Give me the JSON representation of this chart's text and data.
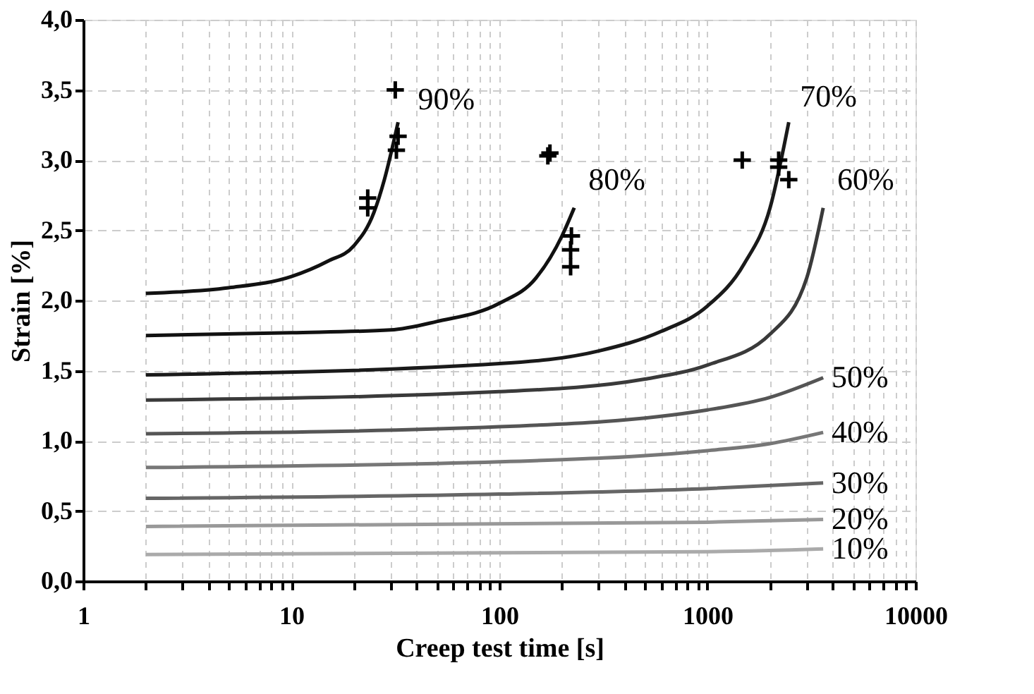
{
  "chart_data": {
    "type": "line",
    "xlabel": "Creep test time [s]",
    "ylabel": "Strain [%]",
    "log": "x",
    "grid": true,
    "line_style": "solid",
    "xlim": [
      1,
      10000
    ],
    "ylim": [
      0,
      4
    ],
    "xticks": [
      1,
      {
        "value": 2,
        "label": null
      },
      {
        "value": 3,
        "label": null
      },
      {
        "value": 4,
        "label": null
      },
      {
        "value": 5,
        "label": null
      },
      {
        "value": 6,
        "label": null
      },
      {
        "value": 7,
        "label": null
      },
      {
        "value": 8,
        "label": null
      },
      {
        "value": 9,
        "label": null
      },
      10,
      {
        "value": 20,
        "label": null
      },
      {
        "value": 30,
        "label": null
      },
      {
        "value": 40,
        "label": null
      },
      {
        "value": 50,
        "label": null
      },
      {
        "value": 60,
        "label": null
      },
      {
        "value": 70,
        "label": null
      },
      {
        "value": 80,
        "label": null
      },
      {
        "value": 90,
        "label": null
      },
      100,
      {
        "value": 200,
        "label": null
      },
      {
        "value": 300,
        "label": null
      },
      {
        "value": 400,
        "label": null
      },
      {
        "value": 500,
        "label": null
      },
      {
        "value": 600,
        "label": null
      },
      {
        "value": 700,
        "label": null
      },
      {
        "value": 800,
        "label": null
      },
      {
        "value": 900,
        "label": null
      },
      1000,
      {
        "value": 2000,
        "label": null
      },
      {
        "value": 3000,
        "label": null
      },
      {
        "value": 4000,
        "label": null
      },
      {
        "value": 5000,
        "label": null
      },
      {
        "value": 6000,
        "label": null
      },
      {
        "value": 7000,
        "label": null
      },
      {
        "value": 8000,
        "label": null
      },
      {
        "value": 9000,
        "label": null
      },
      10000
    ],
    "yticks": [
      {
        "value": 0,
        "label": "0,0"
      },
      {
        "value": 0.5,
        "label": "0,5"
      },
      {
        "value": 1,
        "label": "1,0"
      },
      {
        "value": 1.5,
        "label": "1,5"
      },
      {
        "value": 2,
        "label": "2,0"
      },
      {
        "value": 2.5,
        "label": "2,5"
      },
      {
        "value": 3,
        "label": "3,0"
      },
      {
        "value": 3.5,
        "label": "3,5"
      },
      {
        "value": 4,
        "label": "4,0"
      }
    ],
    "series": [
      {
        "name": "90%",
        "color": "#111111",
        "x": [
          2,
          5,
          10,
          15,
          20,
          25,
          28,
          32.6
        ],
        "values": [
          2.05,
          2.09,
          2.17,
          2.28,
          2.39,
          2.63,
          2.86,
          3.27
        ]
      },
      {
        "name": "80%",
        "color": "#111111",
        "x": [
          2,
          10,
          30,
          50,
          100,
          150,
          200,
          229
        ],
        "values": [
          1.75,
          1.77,
          1.79,
          1.85,
          1.98,
          2.16,
          2.46,
          2.66
        ]
      },
      {
        "name": "70%",
        "color": "#1a1a1a",
        "x": [
          2,
          100,
          300,
          600,
          1000,
          1500,
          2000,
          2460
        ],
        "values": [
          1.47,
          1.55,
          1.64,
          1.78,
          1.96,
          2.26,
          2.66,
          3.27
        ]
      },
      {
        "name": "60%",
        "color": "#3a3a3a",
        "x": [
          2,
          100,
          500,
          1000,
          2000,
          3000,
          3600
        ],
        "values": [
          1.29,
          1.35,
          1.44,
          1.54,
          1.76,
          2.16,
          2.66
        ]
      },
      {
        "name": "50%",
        "color": "#555555",
        "x": [
          2,
          100,
          1000,
          2000,
          3600
        ],
        "values": [
          1.05,
          1.1,
          1.22,
          1.31,
          1.45
        ]
      },
      {
        "name": "40%",
        "color": "#777777",
        "x": [
          2,
          100,
          1000,
          2000,
          3600
        ],
        "values": [
          0.81,
          0.85,
          0.93,
          0.98,
          1.06
        ]
      },
      {
        "name": "30%",
        "color": "#666666",
        "x": [
          2,
          100,
          1000,
          3600
        ],
        "values": [
          0.59,
          0.62,
          0.66,
          0.7
        ]
      },
      {
        "name": "20%",
        "color": "#999999",
        "x": [
          2,
          1000,
          3600
        ],
        "values": [
          0.39,
          0.42,
          0.44
        ]
      },
      {
        "name": "10%",
        "color": "#aaaaaa",
        "x": [
          2,
          1000,
          3600
        ],
        "values": [
          0.19,
          0.21,
          0.23
        ]
      },
      {
        "type": "scatter",
        "marker": "cross",
        "color": "#000000",
        "x": [
          31.6,
          32.6,
          32,
          23.3,
          23.3,
          171,
          175,
          222,
          220,
          220,
          1470,
          2200,
          2200,
          2460
        ],
        "values": [
          3.5,
          3.17,
          3.07,
          2.73,
          2.66,
          3.03,
          3.05,
          2.46,
          2.36,
          2.24,
          3.0,
          3.0,
          2.95,
          2.86
        ]
      }
    ]
  }
}
